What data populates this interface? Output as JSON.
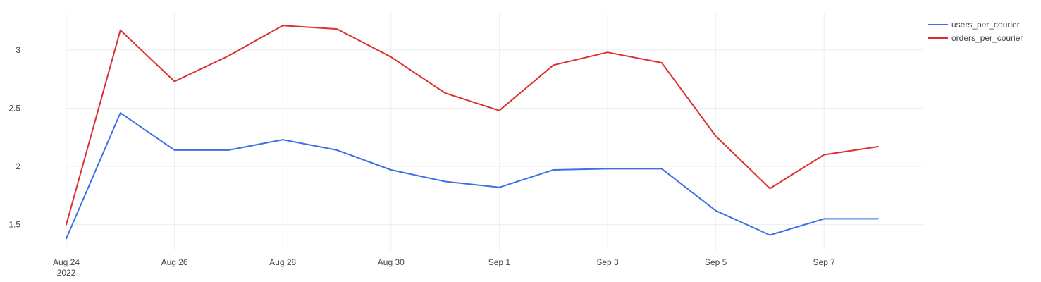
{
  "chart_data": {
    "type": "line",
    "title": "",
    "xlabel": "",
    "ylabel": "",
    "x": [
      "Aug 24",
      "Aug 25",
      "Aug 26",
      "Aug 27",
      "Aug 28",
      "Aug 29",
      "Aug 30",
      "Aug 31",
      "Sep 1",
      "Sep 2",
      "Sep 3",
      "Sep 4",
      "Sep 5",
      "Sep 6",
      "Sep 7",
      "Sep 8"
    ],
    "x_ticks": [
      {
        "index": 0,
        "label": "Aug 24",
        "sublabel": "2022"
      },
      {
        "index": 2,
        "label": "Aug 26",
        "sublabel": ""
      },
      {
        "index": 4,
        "label": "Aug 28",
        "sublabel": ""
      },
      {
        "index": 6,
        "label": "Aug 30",
        "sublabel": ""
      },
      {
        "index": 8,
        "label": "Sep 1",
        "sublabel": ""
      },
      {
        "index": 10,
        "label": "Sep 3",
        "sublabel": ""
      },
      {
        "index": 12,
        "label": "Sep 5",
        "sublabel": ""
      },
      {
        "index": 14,
        "label": "Sep 7",
        "sublabel": ""
      }
    ],
    "y_ticks": [
      {
        "value": 1.5,
        "label": "1.5"
      },
      {
        "value": 2,
        "label": "2"
      },
      {
        "value": 2.5,
        "label": "2.5"
      },
      {
        "value": 3,
        "label": "3"
      }
    ],
    "ylim": [
      1.28,
      3.32
    ],
    "grid": true,
    "legend_position": "top-right",
    "series": [
      {
        "name": "users_per_courier",
        "color": "#3d6fe8",
        "values": [
          1.38,
          2.46,
          2.14,
          2.14,
          2.23,
          2.14,
          1.97,
          1.87,
          1.82,
          1.97,
          1.98,
          1.98,
          1.62,
          1.41,
          1.55,
          1.55
        ]
      },
      {
        "name": "orders_per_courier",
        "color": "#dc2f2f",
        "values": [
          1.5,
          3.17,
          2.73,
          2.95,
          3.21,
          3.18,
          2.94,
          2.63,
          2.48,
          2.87,
          2.98,
          2.89,
          2.26,
          1.81,
          2.1,
          2.17
        ]
      }
    ]
  }
}
